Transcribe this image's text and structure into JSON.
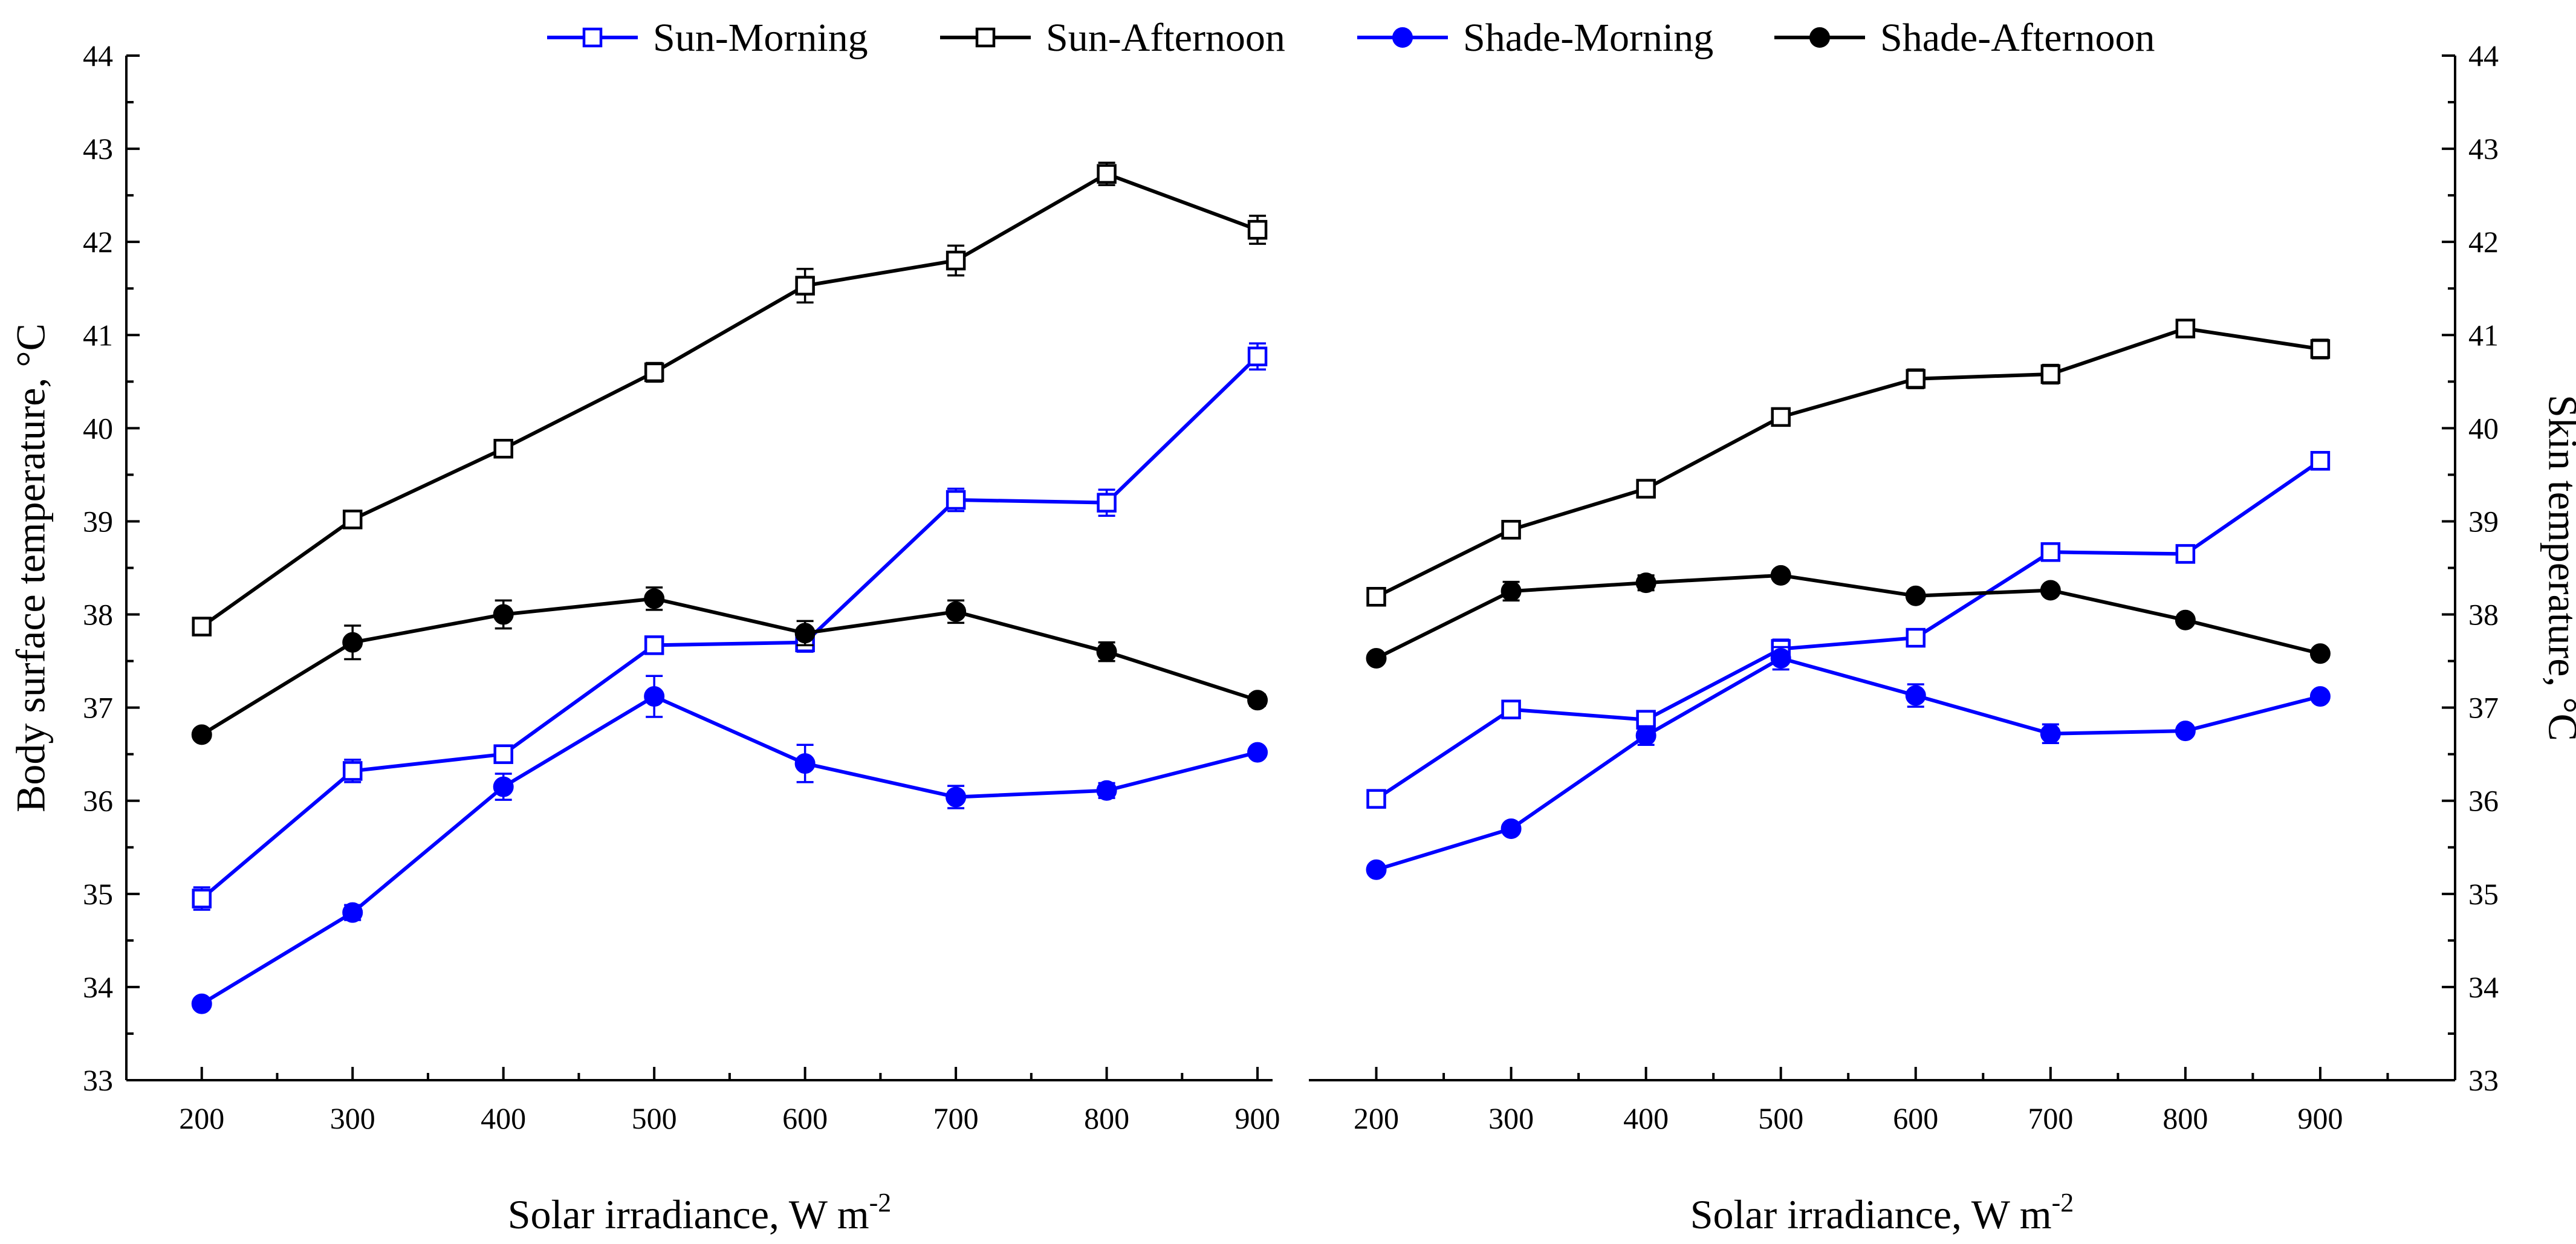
{
  "legend": {
    "entries": [
      {
        "name": "Sun-Morning",
        "color": "#0000FF",
        "marker": "open-square"
      },
      {
        "name": "Sun-Afternoon",
        "color": "#000000",
        "marker": "open-square"
      },
      {
        "name": "Shade-Morning",
        "color": "#0000FF",
        "marker": "filled-circle"
      },
      {
        "name": "Shade-Afternoon",
        "color": "#000000",
        "marker": "filled-circle"
      }
    ]
  },
  "chart_data": [
    {
      "type": "line",
      "title": "",
      "xlabel": "Solar irradiance, W m",
      "xlabel_sup": "-2",
      "ylabel": "Body surface temperature, °C",
      "ylabel_side": "left",
      "x": [
        200,
        300,
        400,
        500,
        600,
        700,
        800,
        900
      ],
      "xlim": [
        150,
        910
      ],
      "ylim": [
        33,
        44
      ],
      "yticks": [
        33,
        34,
        35,
        36,
        37,
        38,
        39,
        40,
        41,
        42,
        43,
        44
      ],
      "series": [
        {
          "name": "Sun-Morning",
          "values": [
            34.95,
            36.32,
            36.5,
            37.67,
            37.7,
            39.23,
            39.2,
            40.77
          ],
          "errors": [
            0.12,
            0.12,
            0.08,
            0.08,
            0.1,
            0.12,
            0.14,
            0.14
          ]
        },
        {
          "name": "Sun-Afternoon",
          "values": [
            37.87,
            39.02,
            39.78,
            40.6,
            41.53,
            41.8,
            42.73,
            42.13
          ],
          "errors": [
            0.05,
            0.06,
            0.08,
            0.1,
            0.18,
            0.16,
            0.12,
            0.15
          ]
        },
        {
          "name": "Shade-Morning",
          "values": [
            33.82,
            34.8,
            36.15,
            37.12,
            36.4,
            36.04,
            36.11,
            36.52
          ],
          "errors": [
            0.05,
            0.08,
            0.14,
            0.22,
            0.2,
            0.12,
            0.08,
            0.05
          ]
        },
        {
          "name": "Shade-Afternoon",
          "values": [
            36.71,
            37.7,
            38.0,
            38.17,
            37.8,
            38.03,
            37.6,
            37.08
          ],
          "errors": [
            0.05,
            0.18,
            0.15,
            0.12,
            0.13,
            0.12,
            0.1,
            0.06
          ]
        }
      ]
    },
    {
      "type": "line",
      "title": "",
      "xlabel": "Solar irradiance, W m",
      "xlabel_sup": "-2",
      "ylabel": "Skin temperature, °C",
      "ylabel_side": "right",
      "x": [
        200,
        300,
        400,
        500,
        600,
        700,
        800,
        900
      ],
      "xlim": [
        150,
        1000
      ],
      "ylim": [
        33,
        44
      ],
      "yticks": [
        33,
        34,
        35,
        36,
        37,
        38,
        39,
        40,
        41,
        42,
        43,
        44
      ],
      "series": [
        {
          "name": "Sun-Morning",
          "values": [
            36.02,
            36.98,
            36.87,
            37.63,
            37.75,
            38.67,
            38.65,
            39.65
          ],
          "errors": [
            0.05,
            0.06,
            0.06,
            0.1,
            0.06,
            0.06,
            0.06,
            0.06
          ]
        },
        {
          "name": "Sun-Afternoon",
          "values": [
            38.19,
            38.91,
            39.35,
            40.12,
            40.53,
            40.58,
            41.07,
            40.85
          ],
          "errors": [
            0.06,
            0.05,
            0.05,
            0.05,
            0.1,
            0.1,
            0.05,
            0.1
          ]
        },
        {
          "name": "Shade-Morning",
          "values": [
            35.26,
            35.7,
            36.7,
            37.53,
            37.13,
            36.72,
            36.75,
            37.12
          ],
          "errors": [
            0.05,
            0.05,
            0.1,
            0.12,
            0.12,
            0.1,
            0.05,
            0.05
          ]
        },
        {
          "name": "Shade-Afternoon",
          "values": [
            37.53,
            38.25,
            38.34,
            38.42,
            38.2,
            38.26,
            37.94,
            37.58
          ],
          "errors": [
            0.05,
            0.1,
            0.08,
            0.05,
            0.05,
            0.05,
            0.05,
            0.05
          ]
        }
      ]
    }
  ]
}
